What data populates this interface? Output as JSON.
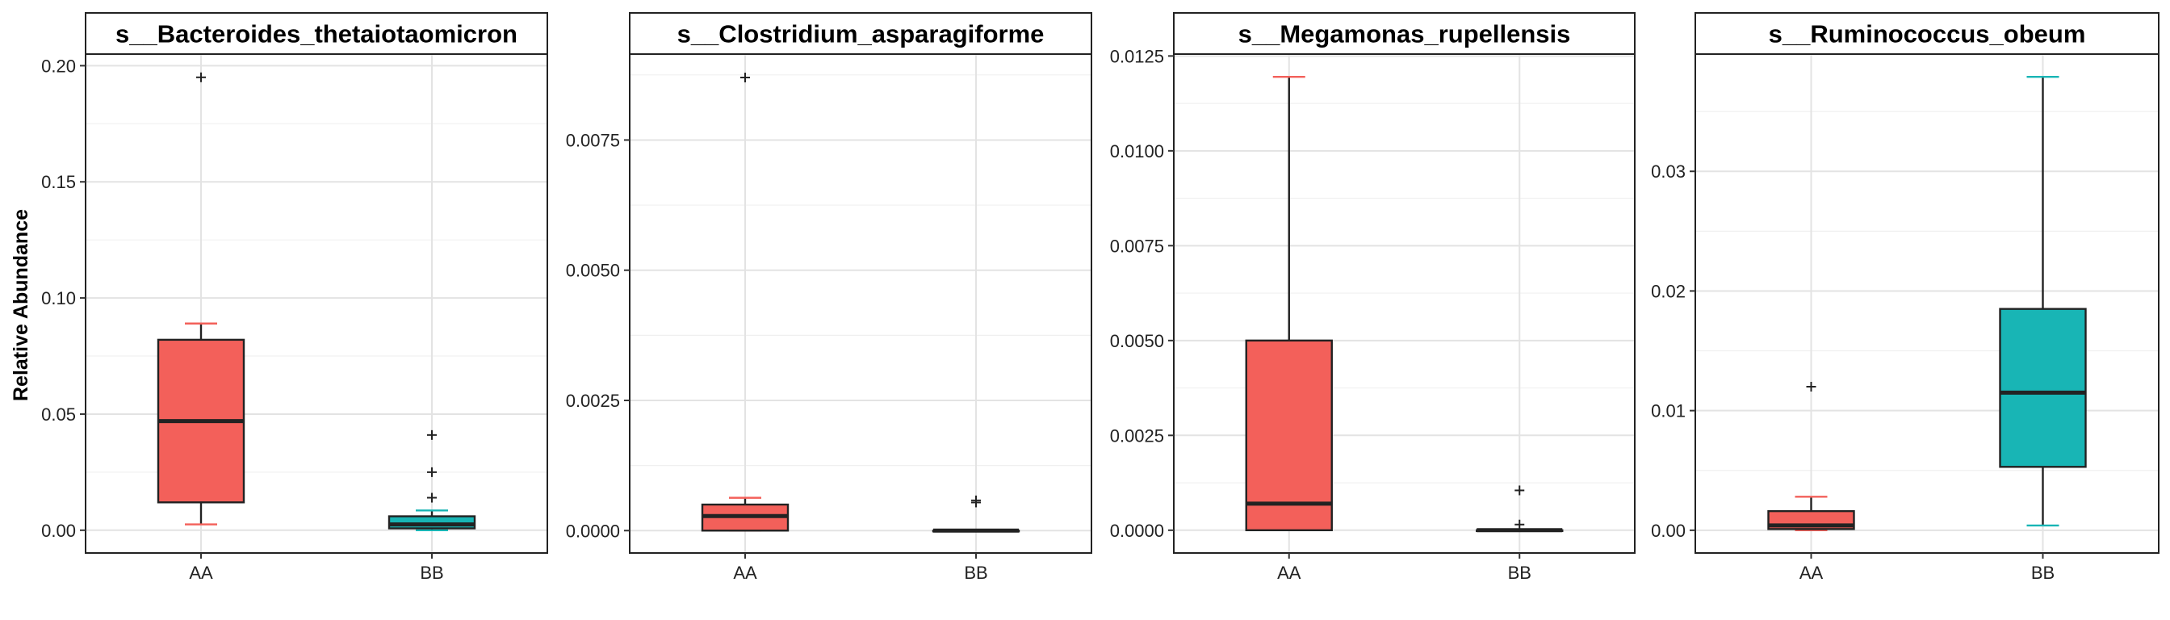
{
  "chart_data": {
    "type": "boxplot",
    "ylabel": "Relative Abundance",
    "categories": [
      "AA",
      "BB"
    ],
    "colors": {
      "AA": "#F3605A",
      "BB": "#18B5B5"
    },
    "grid": true,
    "panels": [
      {
        "title": "s__Bacteroides_thetaiotaomicron",
        "ylim": [
          -0.0098,
          0.205
        ],
        "major_ticks": [
          0,
          0.05,
          0.1,
          0.15,
          0.2
        ],
        "tick_labels": [
          "0.00",
          "0.05",
          "0.10",
          "0.15",
          "0.20"
        ],
        "boxes": [
          {
            "group": "AA",
            "whisker_low": 0.0025,
            "q1": 0.012,
            "median": 0.047,
            "q3": 0.082,
            "whisker_high": 0.089,
            "outliers": [
              0.195
            ]
          },
          {
            "group": "BB",
            "whisker_low": 0.0,
            "q1": 0.0008,
            "median": 0.0025,
            "q3": 0.006,
            "whisker_high": 0.0085,
            "outliers": [
              0.014,
              0.025,
              0.041
            ]
          }
        ]
      },
      {
        "title": "s__Clostridium_asparagiforme",
        "ylim": [
          -0.00043,
          0.00915
        ],
        "major_ticks": [
          0,
          0.0025,
          0.005,
          0.0075
        ],
        "tick_labels": [
          "0.0000",
          "0.0025",
          "0.0050",
          "0.0075"
        ],
        "boxes": [
          {
            "group": "AA",
            "whisker_low": 0.0,
            "q1": 0.0,
            "median": 0.00028,
            "q3": 0.0005,
            "whisker_high": 0.00063,
            "outliers": [
              0.0087
            ]
          },
          {
            "group": "BB",
            "whisker_low": 0.0,
            "q1": 0.0,
            "median": 0.0,
            "q3": 0.0,
            "whisker_high": 0.0,
            "outliers": [
              0.00054,
              0.00058
            ]
          }
        ]
      },
      {
        "title": "s__Megamonas_rupellensis",
        "ylim": [
          -0.0006,
          0.01255
        ],
        "major_ticks": [
          0,
          0.0025,
          0.005,
          0.0075,
          0.01,
          0.0125
        ],
        "tick_labels": [
          "0.0000",
          "0.0025",
          "0.0050",
          "0.0075",
          "0.0100",
          "0.0125"
        ],
        "boxes": [
          {
            "group": "AA",
            "whisker_low": 0.0,
            "q1": 0.0,
            "median": 0.0007,
            "q3": 0.005,
            "whisker_high": 0.01195,
            "outliers": []
          },
          {
            "group": "BB",
            "whisker_low": 0.0,
            "q1": 0.0,
            "median": 0.0,
            "q3": 0.0,
            "whisker_high": 0.0,
            "outliers": [
              0.00015,
              0.00105
            ]
          }
        ]
      },
      {
        "title": "s__Ruminococcus_obeum",
        "ylim": [
          -0.0019,
          0.0398
        ],
        "major_ticks": [
          0,
          0.01,
          0.02,
          0.03
        ],
        "tick_labels": [
          "0.00",
          "0.01",
          "0.02",
          "0.03"
        ],
        "boxes": [
          {
            "group": "AA",
            "whisker_low": 0.0,
            "q1": 0.0001,
            "median": 0.0004,
            "q3": 0.0016,
            "whisker_high": 0.0028,
            "outliers": [
              0.012
            ]
          },
          {
            "group": "BB",
            "whisker_low": 0.0004,
            "q1": 0.0053,
            "median": 0.0115,
            "q3": 0.0185,
            "whisker_high": 0.0379,
            "outliers": []
          }
        ]
      }
    ]
  }
}
